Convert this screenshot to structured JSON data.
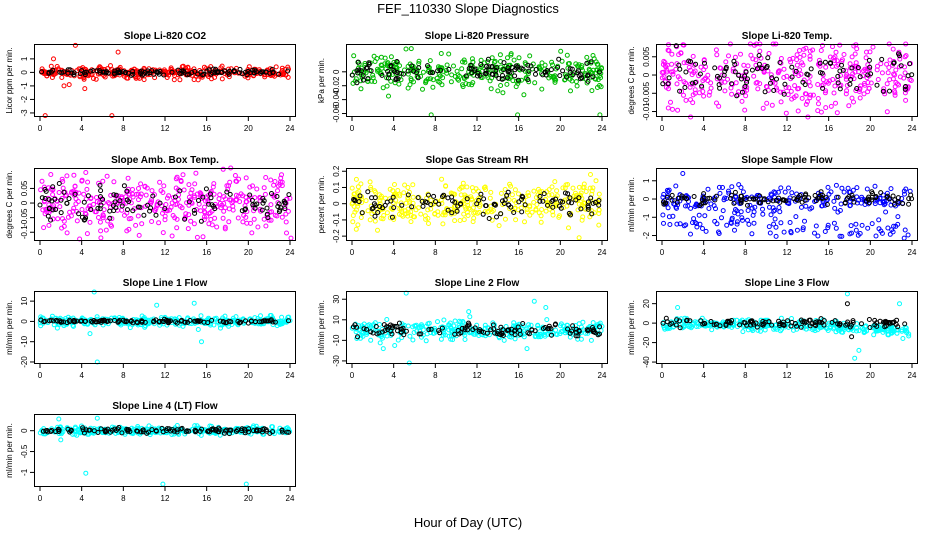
{
  "title": "FEF_110330  Slope Diagnostics",
  "xlabel": "Hour of Day (UTC)",
  "chart_data": [
    {
      "type": "scatter",
      "title": "Slope Li-820 CO2",
      "ylabel": "Licor ppm per min.",
      "xlim": [
        0,
        24
      ],
      "xticks": [
        0,
        4,
        8,
        12,
        16,
        20,
        24
      ],
      "ylim": [
        -3.3,
        2.1
      ],
      "yticks": [
        -3,
        -2,
        -1,
        0,
        1
      ],
      "series": [
        {
          "color": "#ff0000",
          "n": 330,
          "spread": 0.22,
          "out": [
            [
              3.4,
              2.0
            ],
            [
              1.3,
              1.0
            ],
            [
              2.8,
              -0.9
            ],
            [
              7.5,
              1.5
            ],
            [
              6.9,
              -3.2
            ],
            [
              0.5,
              -3.2
            ],
            [
              2.3,
              -1.0
            ],
            [
              4.3,
              -1.2
            ]
          ]
        },
        {
          "color": "#000000",
          "n": 120,
          "spread": 0.1,
          "out": []
        }
      ]
    },
    {
      "type": "scatter",
      "title": "Slope Li-820 Pressure",
      "ylabel": "kPa per min.",
      "xlim": [
        0,
        24
      ],
      "xticks": [
        0,
        4,
        8,
        12,
        16,
        20,
        24
      ],
      "ylim": [
        -0.065,
        0.04
      ],
      "yticks": [
        -0.06,
        -0.04,
        -0.02,
        0.0
      ],
      "series": [
        {
          "color": "#00bb00",
          "n": 330,
          "spread": 0.012,
          "out": [
            [
              7.6,
              -0.062
            ],
            [
              15.9,
              -0.062
            ],
            [
              23.8,
              -0.062
            ],
            [
              3.5,
              -0.035
            ],
            [
              16.5,
              -0.033
            ]
          ]
        },
        {
          "color": "#000000",
          "n": 120,
          "spread": 0.007,
          "out": []
        }
      ]
    },
    {
      "type": "scatter",
      "title": "Slope Li-820 Temp.",
      "ylabel": "degrees C per min.",
      "xlim": [
        0,
        24
      ],
      "xticks": [
        0,
        4,
        8,
        12,
        16,
        20,
        24
      ],
      "ylim": [
        -0.0115,
        0.0085
      ],
      "yticks": [
        -0.01,
        -0.005,
        0.0,
        0.005
      ],
      "series": [
        {
          "color": "#ff00ff",
          "n": 380,
          "spread": 0.0045,
          "out": []
        },
        {
          "color": "#000000",
          "n": 100,
          "spread": 0.003,
          "out": []
        }
      ]
    },
    {
      "type": "scatter",
      "title": "Slope Amb. Box Temp.",
      "ylabel": "degrees C per min.",
      "xlim": [
        0,
        24
      ],
      "xticks": [
        0,
        4,
        8,
        12,
        16,
        20,
        24
      ],
      "ylim": [
        -0.13,
        0.12
      ],
      "yticks": [
        -0.1,
        -0.05,
        0.0,
        0.05
      ],
      "series": [
        {
          "color": "#ff00ff",
          "n": 380,
          "spread": 0.045,
          "out": [
            [
              24.1,
              -0.12
            ]
          ]
        },
        {
          "color": "#000000",
          "n": 110,
          "spread": 0.03,
          "out": []
        }
      ]
    },
    {
      "type": "scatter",
      "title": "Slope Gas Stream RH",
      "ylabel": "percent per min.",
      "xlim": [
        0,
        24
      ],
      "xticks": [
        0,
        4,
        8,
        12,
        16,
        20,
        24
      ],
      "ylim": [
        -0.23,
        0.22
      ],
      "yticks": [
        -0.2,
        -0.1,
        0.0,
        0.1,
        0.2
      ],
      "series": [
        {
          "color": "#ffff00",
          "n": 360,
          "spread": 0.065,
          "out": [
            [
              21.8,
              -0.21
            ],
            [
              22.9,
              0.18
            ]
          ]
        },
        {
          "color": "#000000",
          "n": 110,
          "spread": 0.04,
          "out": []
        }
      ]
    },
    {
      "type": "scatter",
      "title": "Slope Sample Flow",
      "ylabel": "ml/min per min.",
      "xlim": [
        0,
        24
      ],
      "xticks": [
        0,
        4,
        8,
        12,
        16,
        20,
        24
      ],
      "ylim": [
        -2.3,
        1.7
      ],
      "yticks": [
        -2,
        -1,
        0,
        1
      ],
      "series": [
        {
          "color": "#0000ff",
          "n": 300,
          "spread": 0.35,
          "band": [
            -1.0,
            -1.8
          ],
          "out": [
            [
              2.0,
              1.4
            ]
          ]
        },
        {
          "color": "#000000",
          "n": 110,
          "spread": 0.15,
          "out": []
        }
      ]
    },
    {
      "type": "scatter",
      "title": "Slope Line 1 Flow",
      "ylabel": "ml/min per min.",
      "xlim": [
        0,
        24
      ],
      "xticks": [
        0,
        4,
        8,
        12,
        16,
        20,
        24
      ],
      "ylim": [
        -21,
        15
      ],
      "yticks": [
        -20,
        -10,
        0,
        10
      ],
      "series": [
        {
          "color": "#00ffff",
          "n": 330,
          "spread": 1.2,
          "out": [
            [
              5.5,
              -20
            ],
            [
              5.2,
              14.5
            ],
            [
              15.5,
              -10
            ],
            [
              15.2,
              -4
            ],
            [
              4.8,
              -6
            ],
            [
              11.2,
              8
            ],
            [
              14.8,
              9
            ]
          ]
        },
        {
          "color": "#000000",
          "n": 120,
          "spread": 0.4,
          "out": []
        }
      ]
    },
    {
      "type": "scatter",
      "title": "Slope Line 2 Flow",
      "ylabel": "ml/min per min.",
      "xlim": [
        0,
        24
      ],
      "xticks": [
        0,
        4,
        8,
        12,
        16,
        20,
        24
      ],
      "ylim": [
        -33,
        38
      ],
      "yticks": [
        -30,
        -10,
        10,
        30
      ],
      "series": [
        {
          "color": "#00ffff",
          "n": 330,
          "spread": 4.5,
          "out": [
            [
              5.5,
              -32
            ],
            [
              5.2,
              36
            ],
            [
              3.0,
              -18
            ],
            [
              4.1,
              -15
            ],
            [
              17.5,
              28
            ],
            [
              18.6,
              22
            ],
            [
              11.2,
              18
            ],
            [
              16.8,
              -18
            ]
          ]
        },
        {
          "color": "#000000",
          "n": 120,
          "spread": 3.0,
          "out": []
        }
      ]
    },
    {
      "type": "scatter",
      "title": "Slope Line 3 Flow",
      "ylabel": "ml/min per min.",
      "xlim": [
        0,
        24
      ],
      "xticks": [
        0,
        4,
        8,
        12,
        16,
        20,
        24
      ],
      "ylim": [
        -42,
        33
      ],
      "yticks": [
        -40,
        -20,
        0,
        20
      ],
      "series": [
        {
          "color": "#00ffff",
          "n": 330,
          "spread": 2.5,
          "drift": -8,
          "out": [
            [
              17.8,
              30
            ],
            [
              18.5,
              -36
            ],
            [
              18.9,
              -28
            ],
            [
              22.8,
              20
            ],
            [
              1.5,
              16
            ]
          ]
        },
        {
          "color": "#000000",
          "n": 120,
          "spread": 2.0,
          "out": [
            [
              17.8,
              20
            ],
            [
              18.2,
              -14
            ]
          ]
        }
      ]
    },
    {
      "type": "scatter",
      "title": "Slope Line 4 (LT) Flow",
      "ylabel": "ml/min per min.",
      "xlim": [
        0,
        24
      ],
      "xticks": [
        0,
        4,
        8,
        12,
        16,
        20,
        24
      ],
      "ylim": [
        -1.35,
        0.4
      ],
      "yticks": [
        -1.0,
        -0.5,
        0.0
      ],
      "series": [
        {
          "color": "#00ffff",
          "n": 330,
          "spread": 0.05,
          "out": [
            [
              4.4,
              -1.02
            ],
            [
              11.8,
              -1.28
            ],
            [
              19.8,
              -1.28
            ],
            [
              2.0,
              -0.22
            ],
            [
              5.5,
              0.3
            ],
            [
              1.8,
              0.28
            ]
          ]
        },
        {
          "color": "#000000",
          "n": 120,
          "spread": 0.03,
          "out": []
        }
      ]
    }
  ]
}
